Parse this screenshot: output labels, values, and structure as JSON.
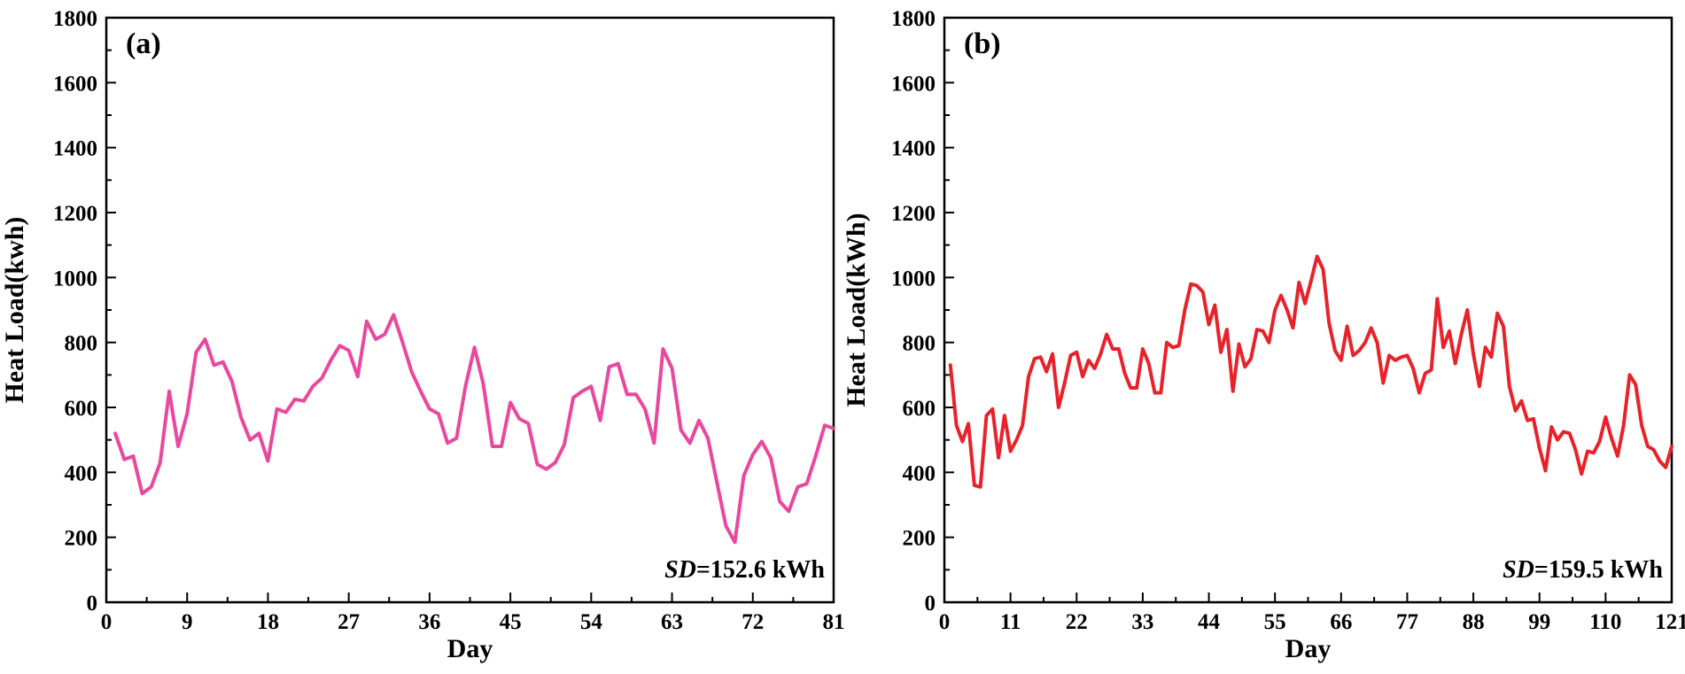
{
  "chart_data": [
    {
      "type": "line",
      "panel_label": "(a)",
      "xlabel": "Day",
      "ylabel": "Heat Load(kwh)",
      "xlim": [
        0,
        81
      ],
      "ylim": [
        0,
        1800
      ],
      "xticks": [
        0,
        9,
        18,
        27,
        36,
        45,
        54,
        63,
        72,
        81
      ],
      "yticks": [
        0,
        200,
        400,
        600,
        800,
        1000,
        1200,
        1400,
        1600,
        1800
      ],
      "annotation": {
        "sd_label": "SD",
        "sd_value": "=152.6 kWh",
        "position": "bottom-right"
      },
      "series": [
        {
          "name": "Heat Load",
          "color": "#E8489E",
          "x": [
            1,
            2,
            3,
            4,
            5,
            6,
            7,
            8,
            9,
            10,
            11,
            12,
            13,
            14,
            15,
            16,
            17,
            18,
            19,
            20,
            21,
            22,
            23,
            24,
            25,
            26,
            27,
            28,
            29,
            30,
            31,
            32,
            33,
            34,
            35,
            36,
            37,
            38,
            39,
            40,
            41,
            42,
            43,
            44,
            45,
            46,
            47,
            48,
            49,
            50,
            51,
            52,
            53,
            54,
            55,
            56,
            57,
            58,
            59,
            60,
            61,
            62,
            63,
            64,
            65,
            66,
            67,
            68,
            69,
            70,
            71,
            72,
            73,
            74,
            75,
            76,
            77,
            78,
            79,
            80,
            81
          ],
          "values": [
            520,
            440,
            450,
            335,
            355,
            430,
            650,
            480,
            580,
            770,
            810,
            730,
            740,
            680,
            570,
            500,
            520,
            435,
            595,
            585,
            625,
            620,
            665,
            690,
            745,
            790,
            775,
            695,
            865,
            810,
            825,
            885,
            800,
            710,
            650,
            595,
            580,
            490,
            505,
            665,
            785,
            670,
            480,
            480,
            615,
            565,
            550,
            425,
            410,
            430,
            485,
            630,
            650,
            665,
            560,
            725,
            735,
            640,
            640,
            595,
            490,
            780,
            720,
            530,
            490,
            560,
            505,
            370,
            235,
            185,
            390,
            455,
            495,
            445,
            310,
            280,
            355,
            365,
            450,
            545,
            535
          ]
        }
      ]
    },
    {
      "type": "line",
      "panel_label": "(b)",
      "xlabel": "Day",
      "ylabel": "Heat Load(kWh)",
      "xlim": [
        0,
        121
      ],
      "ylim": [
        0,
        1800
      ],
      "xticks": [
        0,
        11,
        22,
        33,
        44,
        55,
        66,
        77,
        88,
        99,
        110,
        121
      ],
      "yticks": [
        0,
        200,
        400,
        600,
        800,
        1000,
        1200,
        1400,
        1600,
        1800
      ],
      "annotation": {
        "sd_label": "SD",
        "sd_value": "=159.5 kWh",
        "position": "bottom-right"
      },
      "series": [
        {
          "name": "Heat Load",
          "color": "#E8222B",
          "x": [
            1,
            2,
            3,
            4,
            5,
            6,
            7,
            8,
            9,
            10,
            11,
            12,
            13,
            14,
            15,
            16,
            17,
            18,
            19,
            20,
            21,
            22,
            23,
            24,
            25,
            26,
            27,
            28,
            29,
            30,
            31,
            32,
            33,
            34,
            35,
            36,
            37,
            38,
            39,
            40,
            41,
            42,
            43,
            44,
            45,
            46,
            47,
            48,
            49,
            50,
            51,
            52,
            53,
            54,
            55,
            56,
            57,
            58,
            59,
            60,
            61,
            62,
            63,
            64,
            65,
            66,
            67,
            68,
            69,
            70,
            71,
            72,
            73,
            74,
            75,
            76,
            77,
            78,
            79,
            80,
            81,
            82,
            83,
            84,
            85,
            86,
            87,
            88,
            89,
            90,
            91,
            92,
            93,
            94,
            95,
            96,
            97,
            98,
            99,
            100,
            101,
            102,
            103,
            104,
            105,
            106,
            107,
            108,
            109,
            110,
            111,
            112,
            113,
            114,
            115,
            116,
            117,
            118,
            119,
            120,
            121
          ],
          "values": [
            730,
            545,
            495,
            550,
            360,
            355,
            575,
            595,
            445,
            575,
            465,
            500,
            545,
            695,
            750,
            755,
            710,
            765,
            600,
            675,
            760,
            770,
            695,
            745,
            720,
            765,
            825,
            780,
            780,
            705,
            660,
            660,
            780,
            735,
            645,
            645,
            800,
            785,
            790,
            900,
            980,
            975,
            955,
            855,
            915,
            770,
            840,
            650,
            795,
            725,
            750,
            840,
            835,
            800,
            900,
            945,
            900,
            845,
            985,
            920,
            990,
            1065,
            1025,
            860,
            775,
            745,
            850,
            760,
            775,
            800,
            845,
            800,
            675,
            760,
            745,
            755,
            760,
            720,
            645,
            705,
            715,
            935,
            785,
            835,
            735,
            825,
            900,
            765,
            665,
            785,
            755,
            890,
            850,
            665,
            590,
            620,
            560,
            565,
            475,
            405,
            540,
            500,
            525,
            520,
            470,
            395,
            465,
            460,
            495,
            570,
            505,
            450,
            545,
            700,
            670,
            545,
            480,
            470,
            435,
            415,
            480
          ]
        }
      ]
    }
  ]
}
